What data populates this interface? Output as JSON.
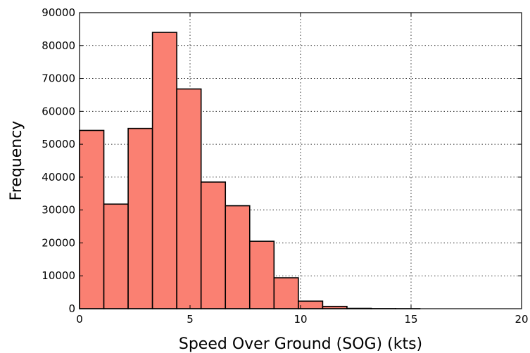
{
  "chart_data": {
    "type": "bar",
    "xlabel": "Speed Over Ground (SOG) (kts)",
    "ylabel": "Frequency",
    "xlim": [
      0,
      20
    ],
    "ylim": [
      0,
      90000
    ],
    "xticks": [
      0,
      5,
      10,
      15,
      20
    ],
    "yticks": [
      0,
      10000,
      20000,
      30000,
      40000,
      50000,
      60000,
      70000,
      80000,
      90000
    ],
    "grid": true,
    "bar_color": "#fa8072",
    "bins": [
      {
        "x0": 0.0,
        "x1": 1.1,
        "value": 54200
      },
      {
        "x0": 1.1,
        "x1": 2.2,
        "value": 31800
      },
      {
        "x0": 2.2,
        "x1": 3.3,
        "value": 54800
      },
      {
        "x0": 3.3,
        "x1": 4.4,
        "value": 84000
      },
      {
        "x0": 4.4,
        "x1": 5.5,
        "value": 66800
      },
      {
        "x0": 5.5,
        "x1": 6.6,
        "value": 38500
      },
      {
        "x0": 6.6,
        "x1": 7.7,
        "value": 31300
      },
      {
        "x0": 7.7,
        "x1": 8.8,
        "value": 20500
      },
      {
        "x0": 8.8,
        "x1": 9.9,
        "value": 9400
      },
      {
        "x0": 9.9,
        "x1": 11.0,
        "value": 2300
      },
      {
        "x0": 11.0,
        "x1": 12.1,
        "value": 700
      },
      {
        "x0": 12.1,
        "x1": 13.2,
        "value": 100
      },
      {
        "x0": 13.2,
        "x1": 14.3,
        "value": 20
      },
      {
        "x0": 14.3,
        "x1": 15.4,
        "value": 5
      }
    ]
  }
}
